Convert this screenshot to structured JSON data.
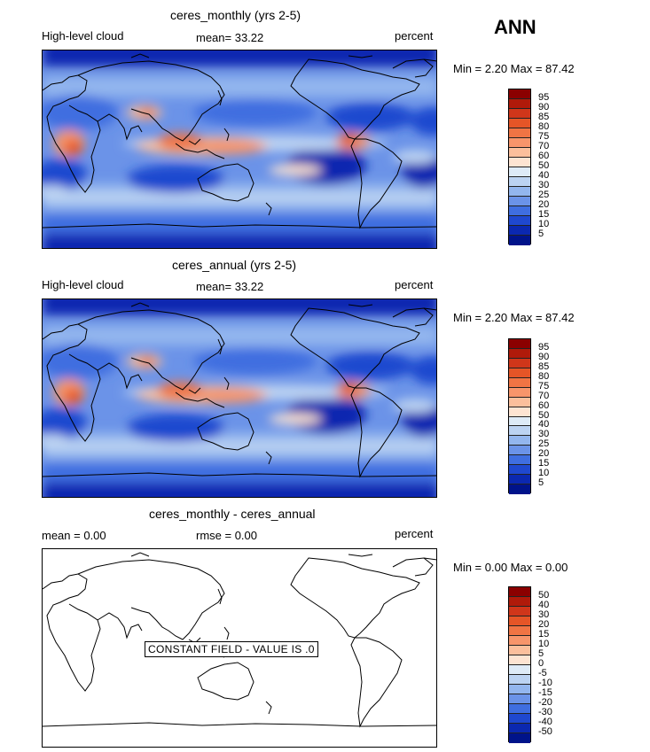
{
  "season": "ANN",
  "panels": [
    {
      "title": "ceres_monthly (yrs 2-5)",
      "left_label": "High-level cloud",
      "mean_text": "mean=   33.22",
      "units": "percent",
      "minmax": "Min =     2.20  Max =   87.42",
      "colorbar": {
        "labels": [
          "95",
          "90",
          "85",
          "80",
          "75",
          "70",
          "60",
          "50",
          "40",
          "30",
          "25",
          "20",
          "15",
          "10",
          "5"
        ],
        "colors": [
          "#8b0000",
          "#b01a0a",
          "#d0361a",
          "#e55527",
          "#f07444",
          "#f7956b",
          "#fbbf9c",
          "#fde4d2",
          "#deebf7",
          "#bcd3f2",
          "#93b6ee",
          "#6b93e8",
          "#3f6ee0",
          "#1f48cf",
          "#0b28b0",
          "#00138a"
        ]
      }
    },
    {
      "title": "ceres_annual (yrs 2-5)",
      "left_label": "High-level cloud",
      "mean_text": "mean=   33.22",
      "units": "percent",
      "minmax": "Min =     2.20  Max =   87.42",
      "colorbar": {
        "labels": [
          "95",
          "90",
          "85",
          "80",
          "75",
          "70",
          "60",
          "50",
          "40",
          "30",
          "25",
          "20",
          "15",
          "10",
          "5"
        ],
        "colors": [
          "#8b0000",
          "#b01a0a",
          "#d0361a",
          "#e55527",
          "#f07444",
          "#f7956b",
          "#fbbf9c",
          "#fde4d2",
          "#deebf7",
          "#bcd3f2",
          "#93b6ee",
          "#6b93e8",
          "#3f6ee0",
          "#1f48cf",
          "#0b28b0",
          "#00138a"
        ]
      }
    },
    {
      "title": "ceres_monthly - ceres_annual",
      "left_label": "mean =     0.00",
      "mean_text": "rmse =     0.00",
      "units": "percent",
      "minmax": "Min =     0.00  Max =     0.00",
      "stamp": "CONSTANT FIELD - VALUE IS .0",
      "colorbar": {
        "labels": [
          "50",
          "40",
          "30",
          "20",
          "15",
          "10",
          "5",
          "0",
          "-5",
          "-10",
          "-15",
          "-20",
          "-30",
          "-40",
          "-50"
        ],
        "colors": [
          "#8b0000",
          "#b01a0a",
          "#d0361a",
          "#e55527",
          "#f07444",
          "#f7956b",
          "#fbbf9c",
          "#fde4d2",
          "#deebf7",
          "#bcd3f2",
          "#93b6ee",
          "#6b93e8",
          "#3f6ee0",
          "#1f48cf",
          "#0b28b0",
          "#00138a"
        ]
      }
    }
  ]
}
